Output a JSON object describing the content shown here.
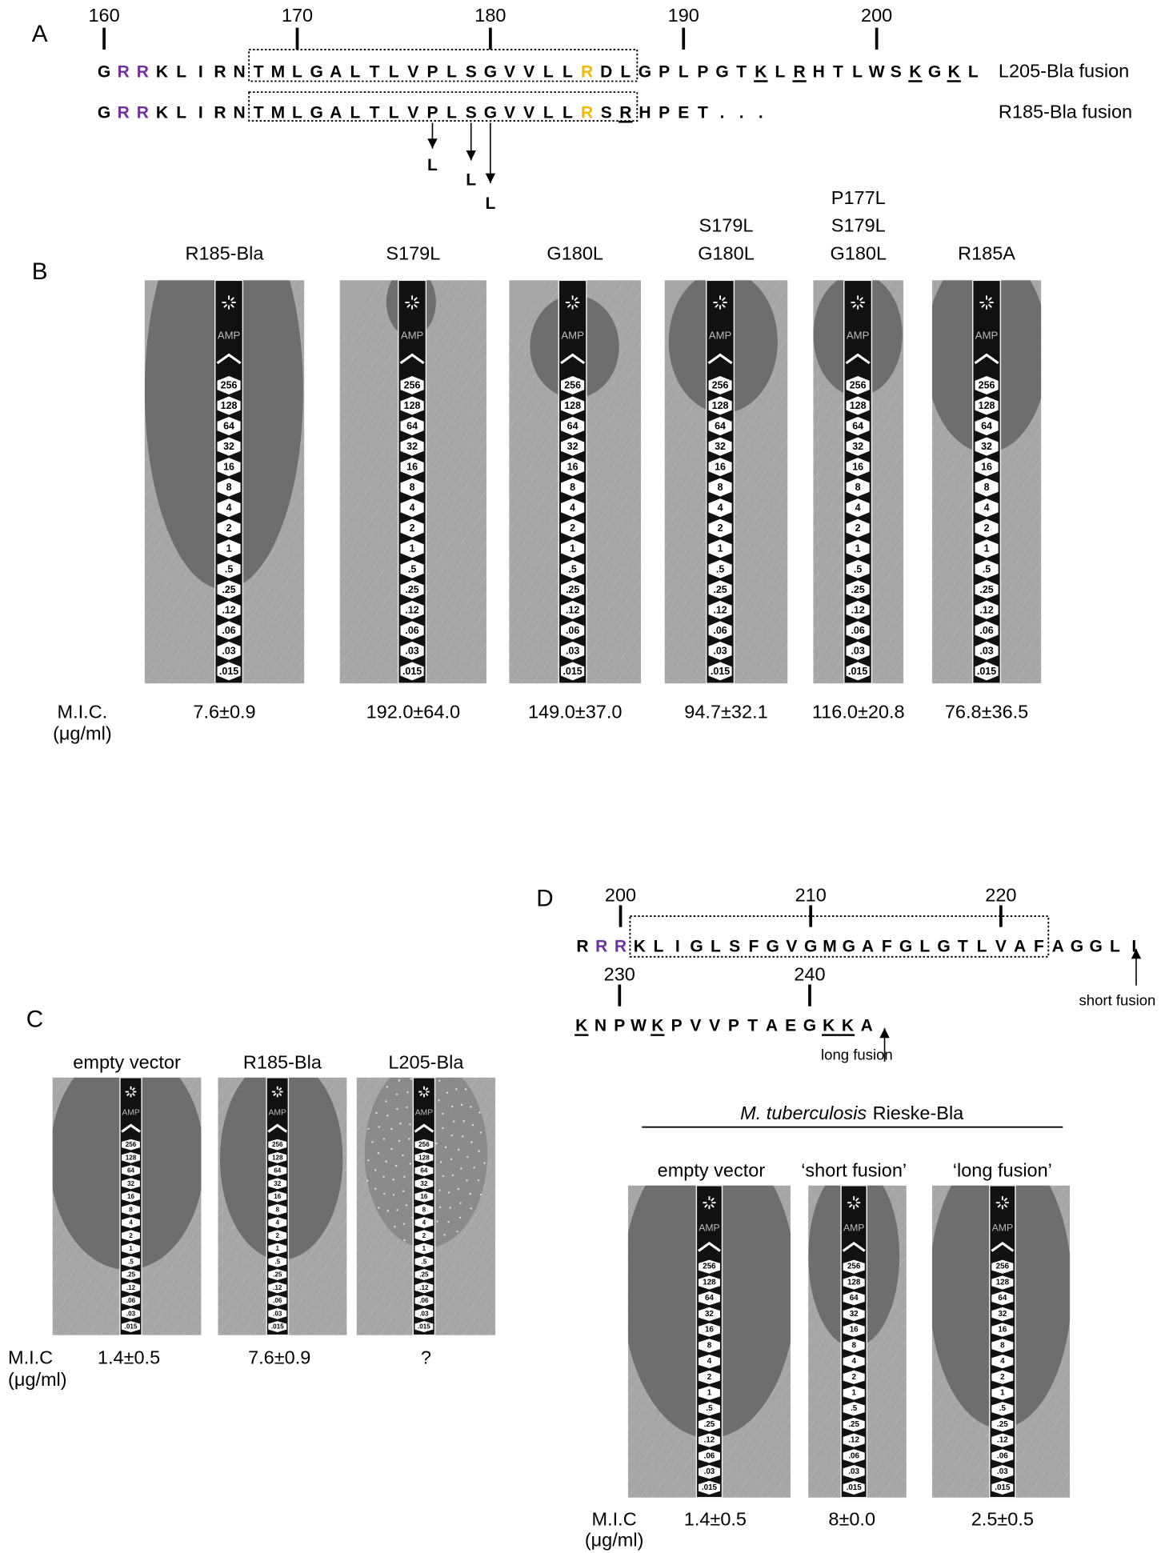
{
  "panels": {
    "A": {
      "label": "A",
      "ruler": [
        160,
        170,
        180,
        190,
        200
      ],
      "rows": [
        {
          "segments": [
            "G",
            "RR",
            "KLIRN",
            "TMLGALTLVPLSGVVLL",
            "R",
            "DL",
            "GPLPGT",
            "K",
            "L",
            "R",
            "HTLWS",
            "K",
            "G",
            "K",
            "L"
          ],
          "name": "L205-Bla fusion"
        },
        {
          "segments": [
            "G",
            "RR",
            "KLIRN",
            "TMLGALTLVPLSGVVLL",
            "R",
            "S",
            "R",
            "HPET..."
          ],
          "name": "R185-Bla fusion"
        }
      ],
      "mutations": [
        "L",
        "L",
        "L"
      ]
    },
    "B": {
      "label": "B",
      "unit_label": [
        "M.I.C.",
        "(μg/ml)"
      ],
      "samples": [
        {
          "header": [
            "R185-Bla"
          ],
          "mic": "7.6±0.9"
        },
        {
          "header": [
            "S179L"
          ],
          "mic": "192.0±64.0"
        },
        {
          "header": [
            "G180L"
          ],
          "mic": "149.0±37.0"
        },
        {
          "header": [
            "S179L",
            "G180L"
          ],
          "mic": "94.7±32.1"
        },
        {
          "header": [
            "P177L",
            "S179L",
            "G180L"
          ],
          "mic": "116.0±20.8"
        },
        {
          "header": [
            "R185A"
          ],
          "mic": "76.8±36.5"
        }
      ]
    },
    "C": {
      "label": "C",
      "unit_label": [
        "M.I.C",
        "(μg/ml)"
      ],
      "samples": [
        {
          "header": [
            "empty vector"
          ],
          "mic": "1.4±0.5"
        },
        {
          "header": [
            "R185-Bla"
          ],
          "mic": "7.6±0.9"
        },
        {
          "header": [
            "L205-Bla"
          ],
          "mic": "?"
        }
      ]
    },
    "D": {
      "label": "D",
      "ruler_1": [
        200,
        210,
        220
      ],
      "ruler_2": [
        230,
        240
      ],
      "rows": [
        {
          "segments": [
            "R",
            "RR",
            "KLIGLSFGVGMGAFGLGTLVAFAGGLI"
          ],
          "arrow": "short fusion"
        },
        {
          "segments": [
            "K",
            "NPW",
            "K",
            "PVVPTAEG",
            "KK",
            "A"
          ],
          "arrow": "long fusion"
        }
      ],
      "title": {
        "italic": "M. tuberculosis",
        "rest": "Rieske-Bla"
      },
      "unit_label": [
        "M.I.C",
        "(μg/ml)"
      ],
      "samples": [
        {
          "header": [
            "empty vector"
          ],
          "mic": "1.4±0.5"
        },
        {
          "header": [
            "‘short fusion’"
          ],
          "mic": "8±0.0"
        },
        {
          "header": [
            "‘long fusion’"
          ],
          "mic": "2.5±0.5"
        }
      ]
    }
  },
  "strip": {
    "drug": "AMP",
    "scale": [
      "256",
      "128",
      "64",
      "32",
      "16",
      "8",
      "4",
      "2",
      "1",
      ".5",
      ".25",
      ".12",
      ".06",
      ".03",
      ".015"
    ]
  }
}
